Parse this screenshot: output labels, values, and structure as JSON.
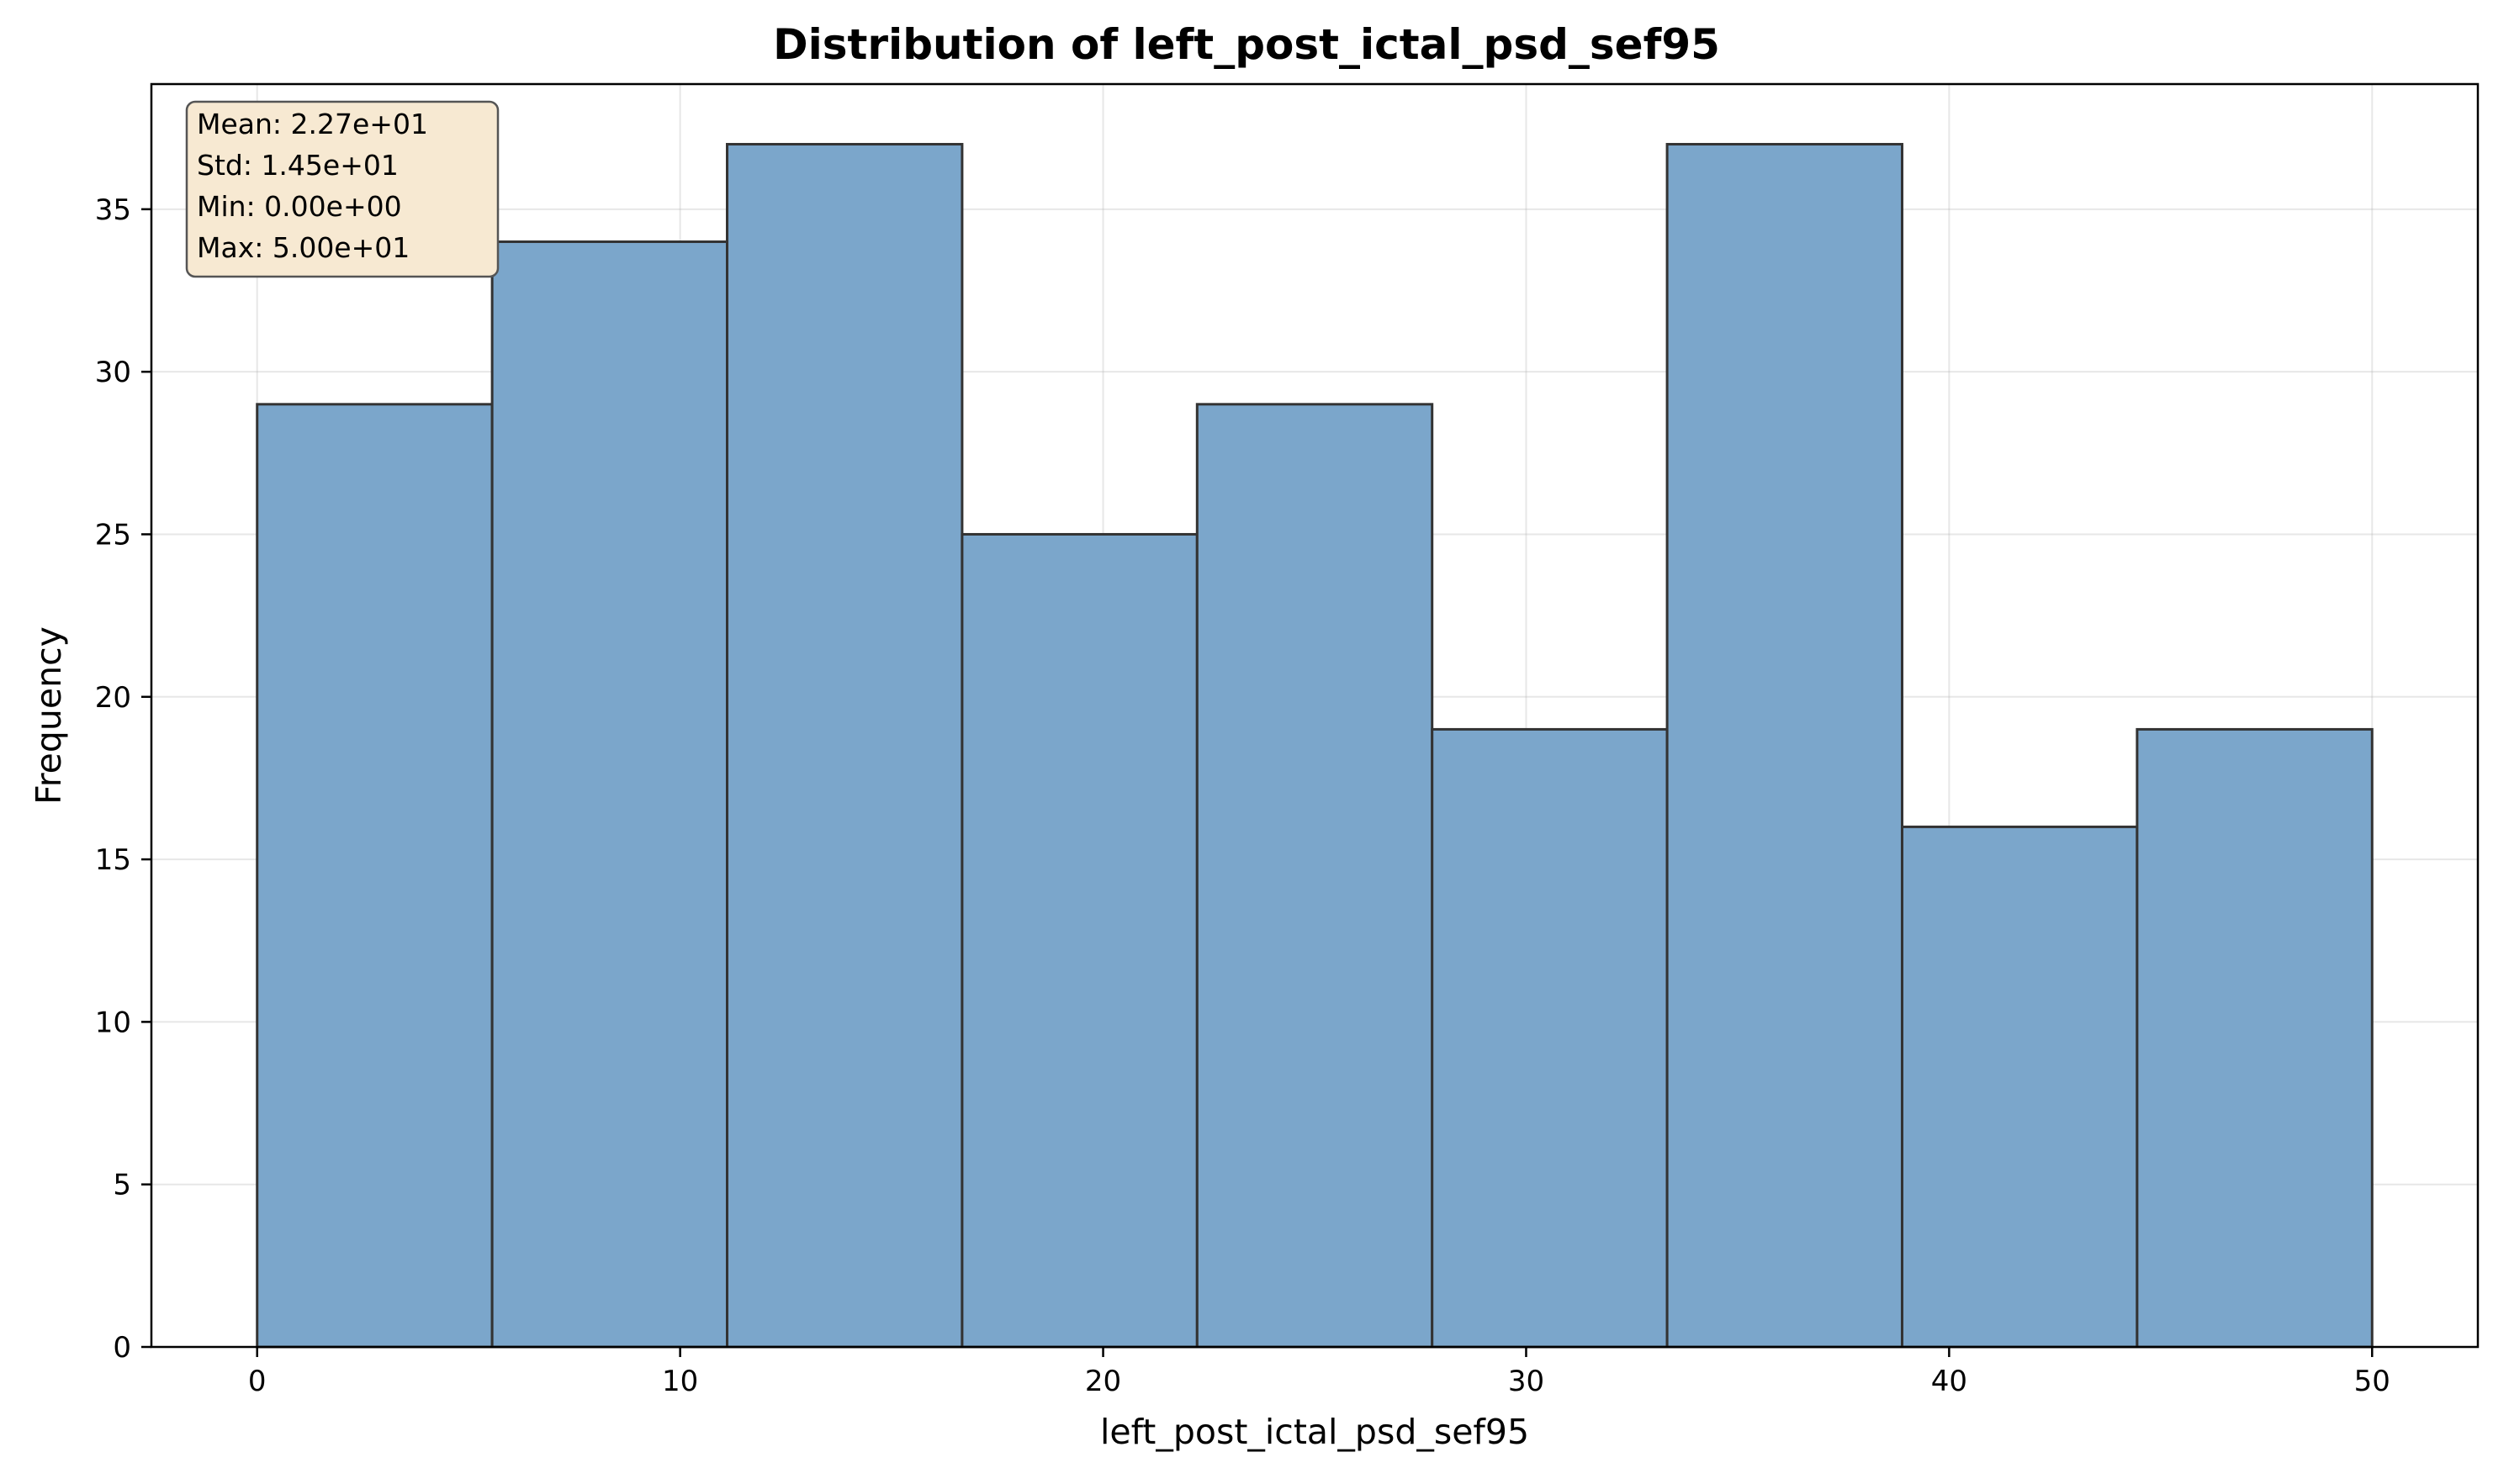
{
  "chart_data": {
    "type": "bar",
    "title": "Distribution of left_post_ictal_psd_sef95",
    "xlabel": "left_post_ictal_psd_sef95",
    "ylabel": "Frequency",
    "xlim": [
      -2.5,
      52.5
    ],
    "ylim": [
      0,
      38.85
    ],
    "xticks": [
      0,
      10,
      20,
      30,
      40,
      50
    ],
    "yticks": [
      0,
      5,
      10,
      15,
      20,
      25,
      30,
      35
    ],
    "grid": true,
    "bin_edges": [
      0,
      5.5556,
      11.1111,
      16.6667,
      22.2222,
      27.7778,
      33.3333,
      38.8889,
      44.4444,
      50
    ],
    "values": [
      29,
      34,
      37,
      25,
      29,
      19,
      37,
      16,
      19
    ],
    "bar_color": "#7ba6cb",
    "edge_color": "#333333",
    "stats": [
      "Mean: 2.27e+01",
      "Std: 1.45e+01",
      "Min: 0.00e+00",
      "Max: 5.00e+01"
    ],
    "stats_box_color": "#f7e9d2",
    "stats_placement": "top-left"
  }
}
